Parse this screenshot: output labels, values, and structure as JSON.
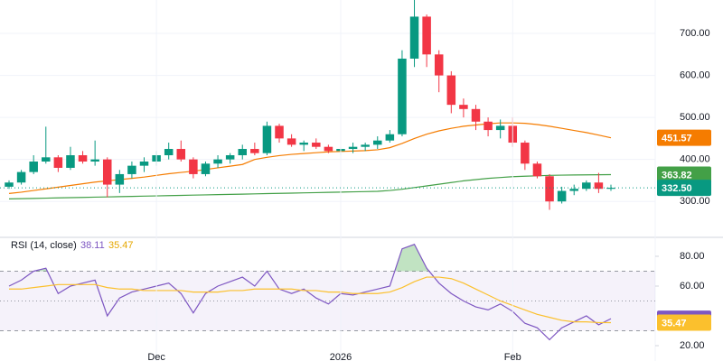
{
  "chart_data": [
    {
      "type": "candlestick",
      "up_color": "#089981",
      "down_color": "#f23645",
      "open": [
        335,
        345,
        370,
        395,
        405,
        380,
        410,
        395,
        400,
        340,
        365,
        385,
        395,
        410,
        425,
        400,
        365,
        390,
        400,
        410,
        425,
        415,
        480,
        450,
        435,
        440,
        430,
        420,
        425,
        430,
        435,
        445,
        460,
        640,
        740,
        650,
        600,
        530,
        520,
        490,
        470,
        480,
        440,
        390,
        360,
        300,
        325,
        330,
        345,
        330
      ],
      "high": [
        350,
        375,
        410,
        478,
        410,
        430,
        420,
        445,
        405,
        375,
        395,
        405,
        420,
        440,
        445,
        405,
        395,
        410,
        415,
        435,
        440,
        490,
        485,
        460,
        445,
        450,
        435,
        430,
        440,
        440,
        455,
        470,
        660,
        780,
        745,
        660,
        610,
        545,
        530,
        500,
        495,
        500,
        445,
        395,
        365,
        335,
        340,
        350,
        368,
        340
      ],
      "low": [
        330,
        340,
        365,
        390,
        370,
        375,
        390,
        385,
        310,
        320,
        355,
        370,
        385,
        400,
        395,
        355,
        360,
        380,
        390,
        400,
        410,
        410,
        440,
        430,
        420,
        425,
        415,
        410,
        415,
        420,
        425,
        440,
        455,
        620,
        620,
        560,
        510,
        500,
        470,
        455,
        450,
        430,
        375,
        355,
        280,
        295,
        315,
        325,
        320,
        325
      ],
      "close": [
        345,
        370,
        395,
        405,
        380,
        410,
        395,
        400,
        340,
        365,
        385,
        395,
        410,
        425,
        400,
        365,
        390,
        400,
        410,
        425,
        415,
        480,
        450,
        435,
        440,
        430,
        420,
        425,
        430,
        435,
        445,
        460,
        640,
        740,
        650,
        600,
        530,
        520,
        490,
        470,
        480,
        440,
        390,
        360,
        300,
        325,
        330,
        345,
        330,
        332.5
      ],
      "last_close_label": "332.50",
      "series": [
        {
          "color": "#f57c00",
          "values": [
            319,
            322,
            326,
            330,
            334,
            338,
            342,
            346,
            349,
            352,
            355,
            358,
            362,
            366,
            369,
            372,
            376,
            380,
            384,
            388,
            400,
            405,
            409,
            412,
            414,
            416,
            418,
            419,
            420,
            421,
            423,
            428,
            438,
            450,
            460,
            468,
            474,
            479,
            482,
            485,
            487,
            487,
            486,
            483,
            479,
            474,
            469,
            464,
            458,
            451.57
          ]
        },
        {
          "color": "#43a047",
          "values": [
            306,
            306.6,
            307.2,
            307.8,
            308.4,
            309,
            309.6,
            310.2,
            310.8,
            311.4,
            312,
            312.6,
            313.2,
            313.8,
            314.4,
            315,
            315.6,
            316.2,
            316.8,
            317.4,
            318,
            318.6,
            319.2,
            319.8,
            320.4,
            321,
            321.6,
            322.2,
            322.8,
            323.4,
            324,
            326,
            329,
            333,
            337,
            341,
            345,
            349,
            352,
            355,
            357,
            359,
            360,
            361,
            362,
            362.6,
            363,
            363.3,
            363.6,
            363.82
          ]
        }
      ],
      "ylim": [
        216.6,
        779.6
      ],
      "yticks": [
        {
          "value": 300,
          "label": "300.00"
        },
        {
          "value": 400,
          "label": "400.00"
        },
        {
          "value": 500,
          "label": "500.00"
        },
        {
          "value": 600,
          "label": "600.00"
        },
        {
          "value": 700,
          "label": "700.00"
        }
      ],
      "grid": true
    },
    {
      "type": "line",
      "title": "RSI (14, close)",
      "categories": [
        null,
        null,
        null,
        null,
        null,
        null,
        null,
        null,
        null,
        null,
        null,
        null,
        "Dec",
        null,
        null,
        null,
        null,
        null,
        null,
        null,
        null,
        null,
        null,
        null,
        null,
        null,
        null,
        "2026",
        null,
        null,
        null,
        null,
        null,
        null,
        null,
        null,
        null,
        null,
        null,
        null,
        null,
        "Feb",
        null,
        null,
        null,
        null,
        null,
        null,
        null,
        null
      ],
      "series": [
        {
          "color": "#7e57c2",
          "values": [
            60,
            64,
            70,
            72,
            55,
            60,
            62,
            64,
            40,
            52,
            56,
            58,
            60,
            62,
            55,
            42,
            55,
            60,
            63,
            66,
            60,
            70,
            58,
            55,
            58,
            52,
            48,
            55,
            54,
            56,
            58,
            60,
            85,
            88,
            72,
            62,
            55,
            50,
            46,
            44,
            48,
            43,
            35,
            32,
            24,
            32,
            36,
            40,
            34,
            38.11
          ]
        },
        {
          "color": "#fbc02d",
          "values": [
            58,
            58,
            59,
            60,
            61,
            61,
            61,
            61,
            59,
            58,
            58,
            57,
            57,
            57,
            57,
            56,
            56,
            56,
            57,
            57,
            58,
            58,
            58,
            58,
            57,
            57,
            56,
            56,
            55,
            55,
            55,
            56,
            59,
            63,
            66,
            66,
            65,
            62,
            58,
            54,
            50,
            47,
            44,
            41,
            39,
            37,
            36,
            36,
            35.5,
            35.47
          ]
        }
      ],
      "bands": [
        70,
        50,
        30
      ],
      "band_color": "#7e57c2",
      "overbought_color": "#4caf50",
      "ylim": [
        9.7,
        91.5
      ],
      "yticks": [
        {
          "value": 20,
          "label": "20.00"
        },
        {
          "value": 60,
          "label": "60.00"
        },
        {
          "value": 80,
          "label": "80.00"
        }
      ],
      "grid": true
    }
  ]
}
